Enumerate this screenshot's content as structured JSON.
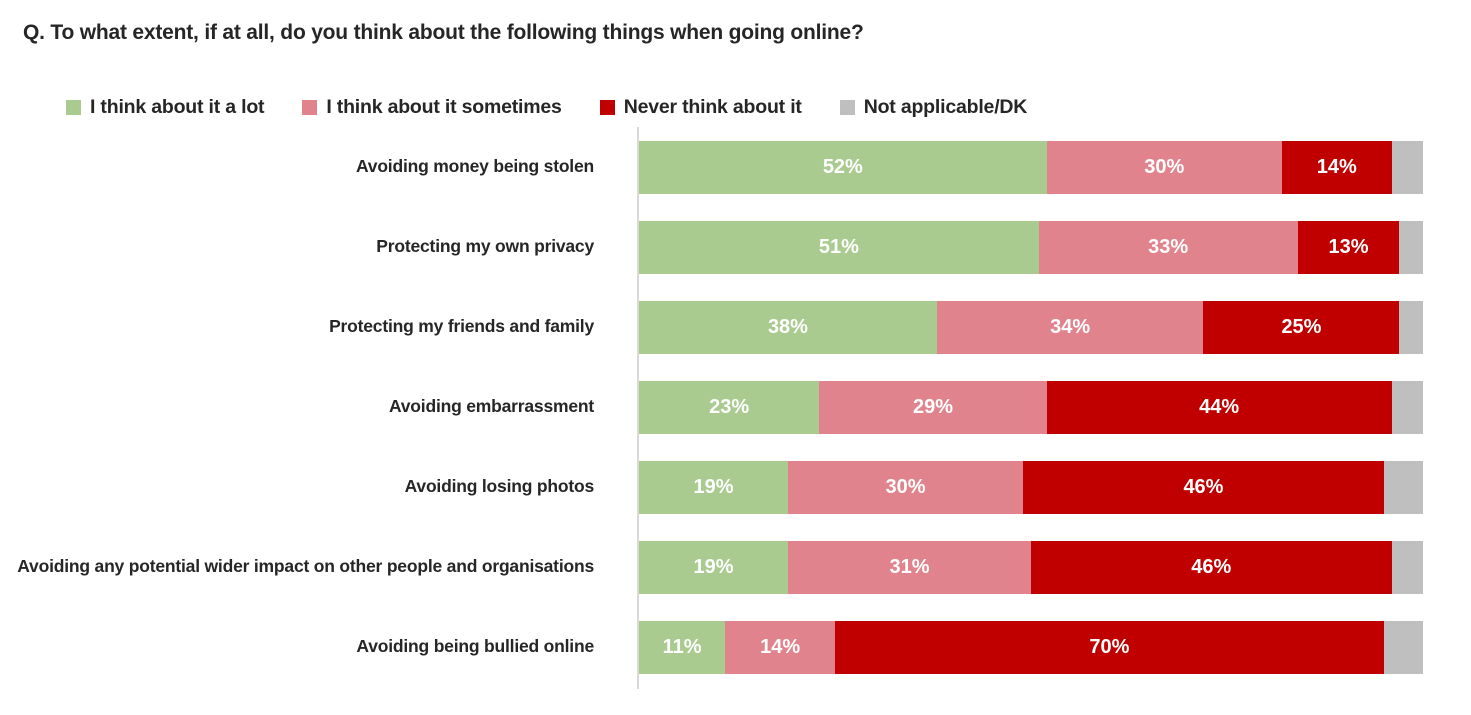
{
  "title": "Q. To what extent, if at all, do you think about the following things when going online?",
  "colors": {
    "a_lot": "#a9cb8f",
    "sometimes": "#e0838d",
    "never": "#c00000",
    "not_applicable": "#bfbfbf",
    "axis": "#d9d9d9",
    "text": "#262626",
    "data_label": "#ffffff"
  },
  "legend": [
    {
      "label": "I think about it a lot",
      "color": "#a9cb8f"
    },
    {
      "label": "I think about it sometimes",
      "color": "#e0838d"
    },
    {
      "label": "Never think about it",
      "color": "#c00000"
    },
    {
      "label": "Not applicable/DK",
      "color": "#bfbfbf"
    }
  ],
  "chart_data": {
    "type": "bar",
    "orientation": "horizontal",
    "stacked": true,
    "title": "Q. To what extent, if at all, do you think about the following things when going online?",
    "xlim": [
      0,
      100
    ],
    "value_suffix": "%",
    "legend_position": "top",
    "grid": false,
    "categories": [
      "Avoiding money being stolen",
      "Protecting my own privacy",
      "Protecting my friends and family",
      "Avoiding embarrassment",
      "Avoiding losing photos",
      "Avoiding any potential wider impact on other people and organisations",
      "Avoiding being bullied online"
    ],
    "series": [
      {
        "name": "I think about it a lot",
        "color": "#a9cb8f",
        "data_labels_shown": true,
        "values": [
          52,
          51,
          38,
          23,
          19,
          19,
          11
        ]
      },
      {
        "name": "I think about it sometimes",
        "color": "#e0838d",
        "data_labels_shown": true,
        "values": [
          30,
          33,
          34,
          29,
          30,
          31,
          14
        ]
      },
      {
        "name": "Never think about it",
        "color": "#c00000",
        "data_labels_shown": true,
        "values": [
          14,
          13,
          25,
          44,
          46,
          46,
          70
        ]
      },
      {
        "name": "Not applicable/DK",
        "color": "#bfbfbf",
        "data_labels_shown": false,
        "values": [
          4,
          3,
          3,
          4,
          5,
          4,
          5
        ]
      }
    ]
  }
}
